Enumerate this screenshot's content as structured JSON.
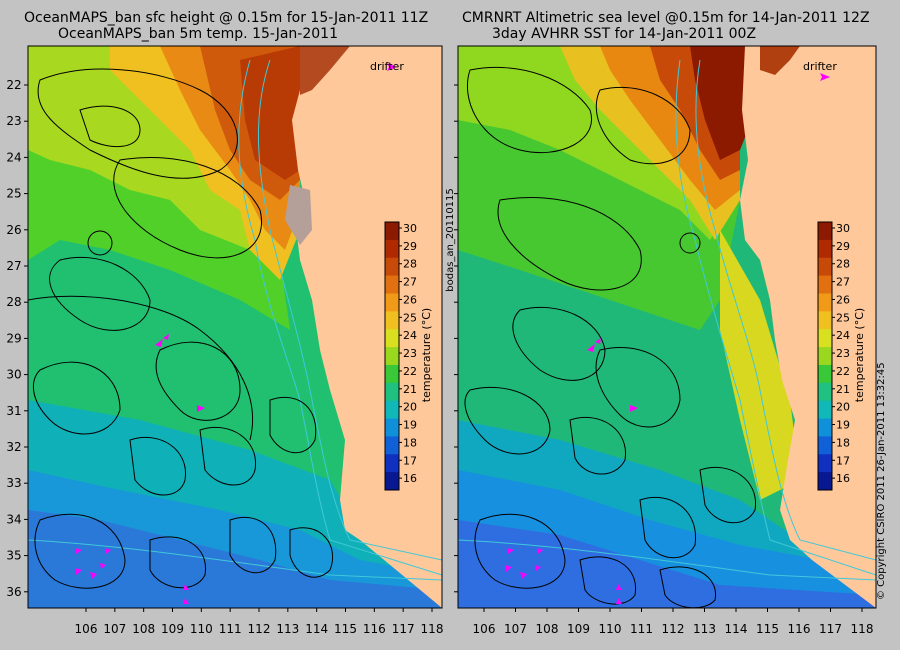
{
  "left_panel": {
    "title_line1": "OceanMAPS_ban sfc height @ 0.15m for 15-Jan-2011 11Z",
    "title_line2": "OceanMAPS_ban 5m temp. 15-Jan-2011",
    "drifter_label": "drifter",
    "colorbar_label": "temperature (°C)"
  },
  "right_panel": {
    "title_line1": "CMRNRT Altimetric sea level  @0.15m  for 14-Jan-2011 12Z",
    "title_line2": "3day AVHRR SST for 14-Jan-2011 00Z",
    "drifter_label": "drifter",
    "colorbar_label": "temperature (°C)"
  },
  "side_text": {
    "left": "bodas_an_20110115",
    "right": "© Copyright CSIRO 2011   26-Jan-2011 13:32:45"
  },
  "axes": {
    "lon_ticks": [
      "106",
      "107",
      "108",
      "109",
      "110",
      "111",
      "112",
      "113",
      "114",
      "115",
      "116",
      "117",
      "118"
    ],
    "lat_ticks": [
      "22",
      "23",
      "24",
      "25",
      "26",
      "27",
      "28",
      "29",
      "30",
      "31",
      "32",
      "33",
      "34",
      "35",
      "36"
    ]
  },
  "colorbar": {
    "ticks": [
      "30",
      "29",
      "28",
      "27",
      "26",
      "25",
      "24",
      "23",
      "22",
      "21",
      "20",
      "19",
      "18",
      "17",
      "16"
    ],
    "colors": [
      "#8b1a00",
      "#b02a00",
      "#c84a08",
      "#e07010",
      "#f09a18",
      "#f0c020",
      "#d8e020",
      "#9ad820",
      "#38c838",
      "#20c080",
      "#10b8b8",
      "#1090d8",
      "#1060d8",
      "#1030c0",
      "#081890"
    ]
  },
  "colors": {
    "background": "#c3c3c3",
    "land": "#ffc89a",
    "drifter": "#ff00ff",
    "contour": "#000000",
    "isobath": "#40c8d8"
  }
}
